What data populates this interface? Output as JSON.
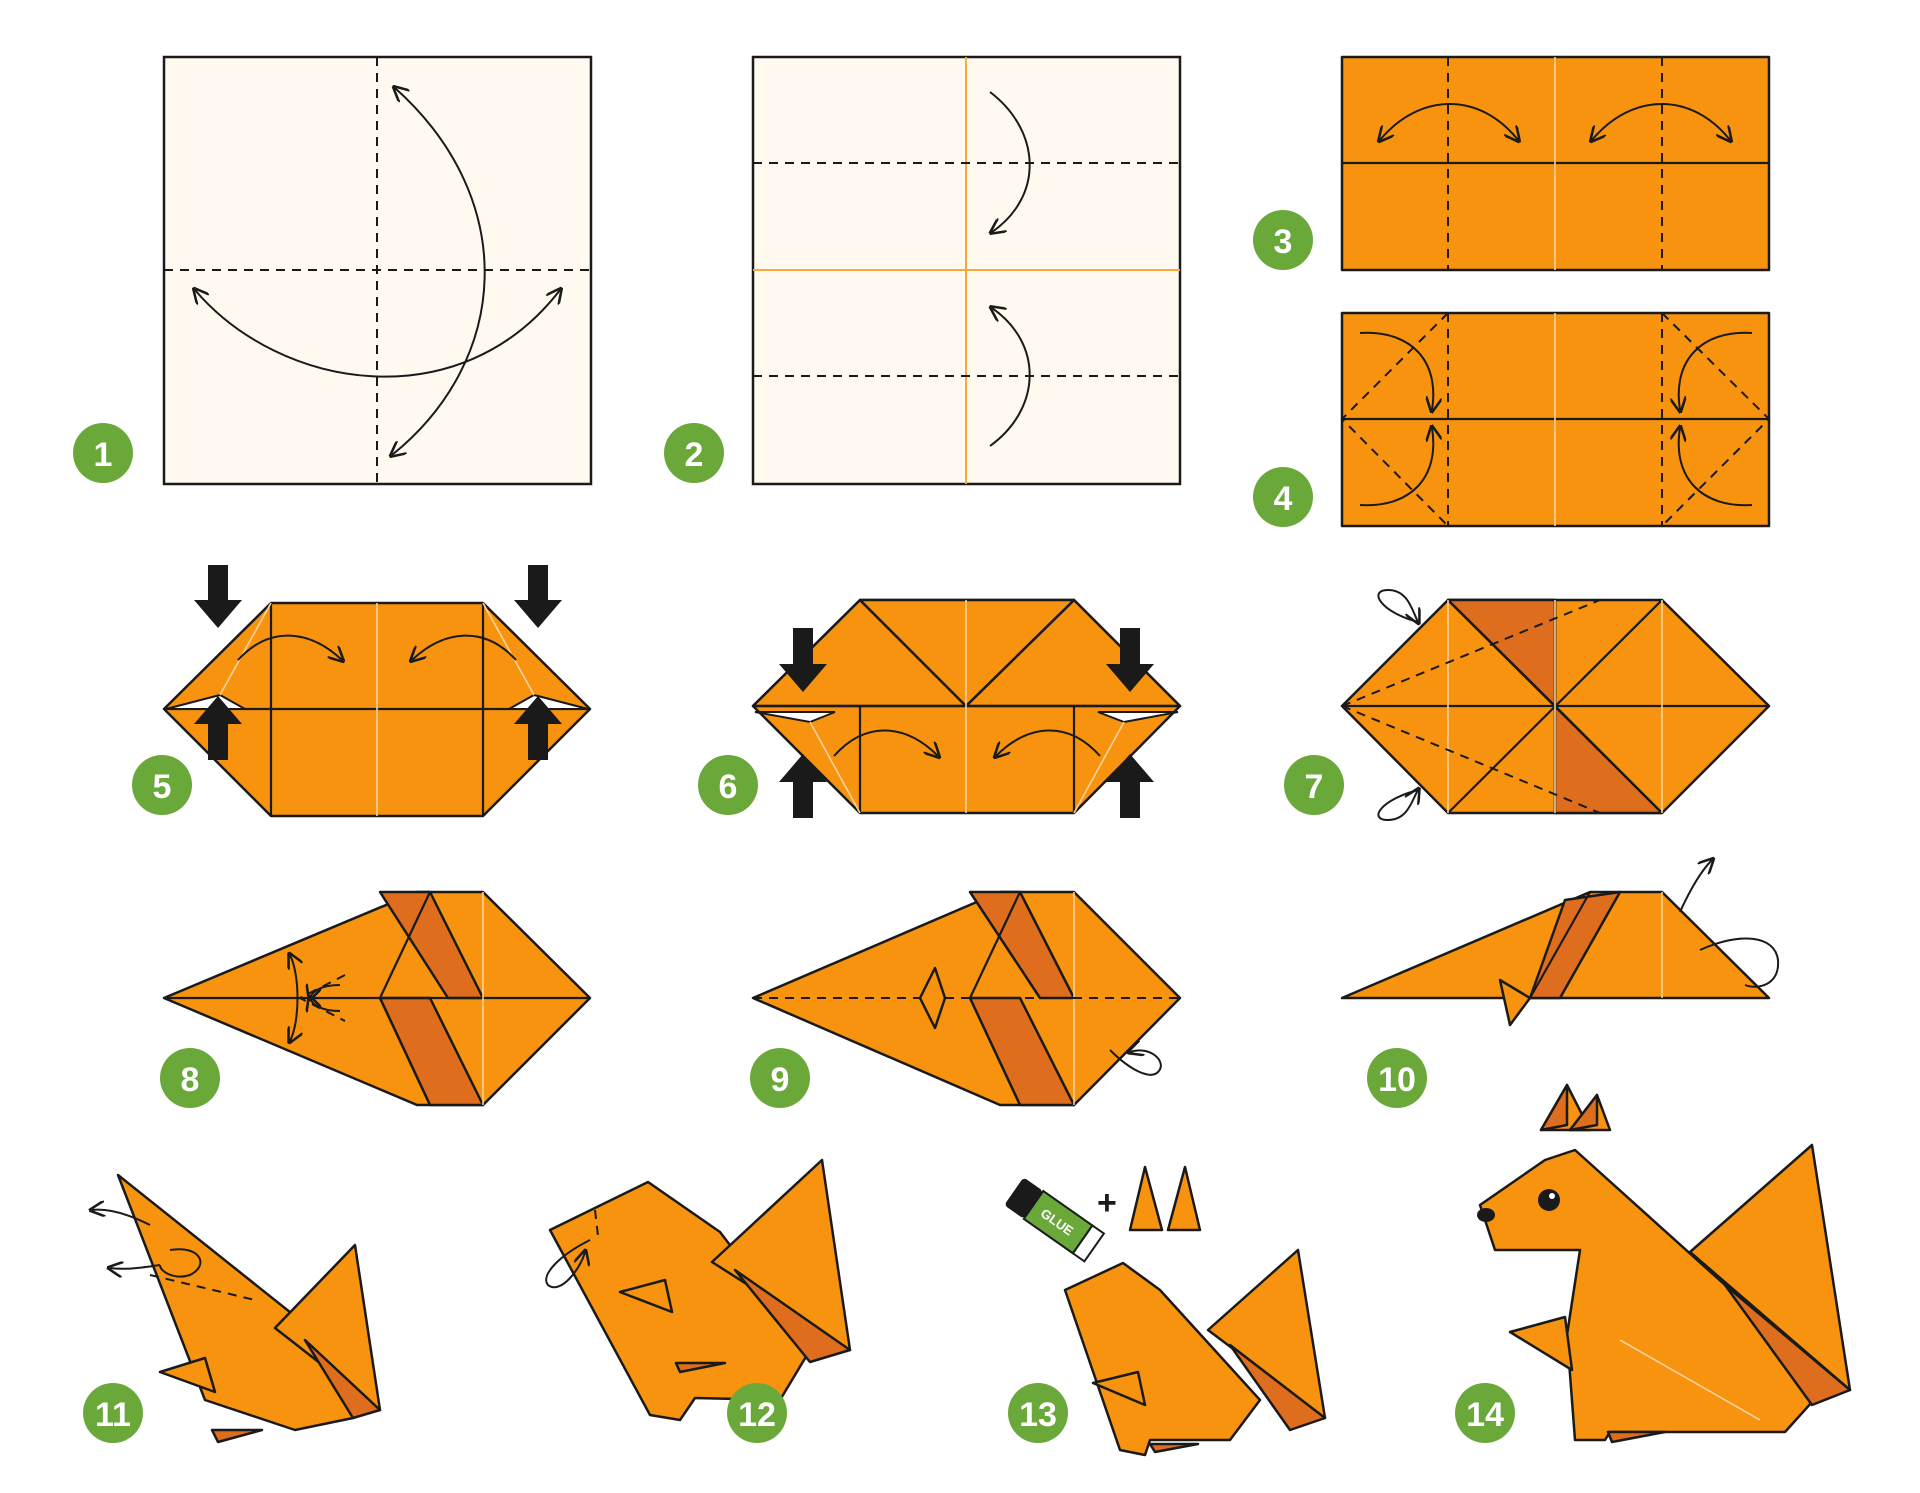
{
  "steps": [
    {
      "number": "1"
    },
    {
      "number": "2"
    },
    {
      "number": "3"
    },
    {
      "number": "4"
    },
    {
      "number": "5"
    },
    {
      "number": "6"
    },
    {
      "number": "7"
    },
    {
      "number": "8"
    },
    {
      "number": "9"
    },
    {
      "number": "10"
    },
    {
      "number": "11"
    },
    {
      "number": "12"
    },
    {
      "number": "13"
    },
    {
      "number": "14"
    }
  ],
  "glue_stick": {
    "label": "GLUE"
  },
  "plus_sign": "+",
  "colors": {
    "paper_front": "#F7930E",
    "paper_back": "#FFF9F0",
    "paper_shadow": "#DE6E1E",
    "badge": "#6AA83A",
    "line": "#1a1a1a"
  }
}
